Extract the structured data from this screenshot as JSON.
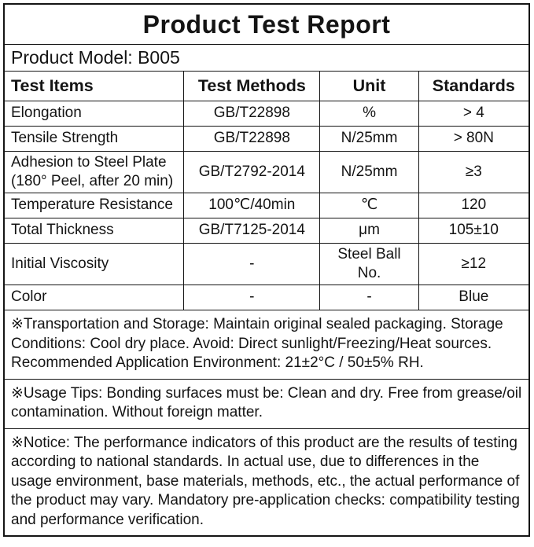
{
  "report": {
    "title": "Product Test Report",
    "model_line": "Product Model: B005",
    "table": {
      "headers": [
        "Test Items",
        "Test Methods",
        "Unit",
        "Standards"
      ],
      "rows": [
        {
          "item": "Elongation",
          "method": "GB/T22898",
          "unit": "%",
          "standard": "> 4"
        },
        {
          "item": "Tensile Strength",
          "method": "GB/T22898",
          "unit": "N/25mm",
          "standard": "> 80N"
        },
        {
          "item": "Adhesion to Steel Plate (180° Peel, after 20 min)",
          "method": "GB/T2792-2014",
          "unit": "N/25mm",
          "standard": "≥3"
        },
        {
          "item": "Temperature Resistance",
          "method": "100℃/40min",
          "unit": "℃",
          "standard": "120"
        },
        {
          "item": "Total Thickness",
          "method": "GB/T7125-2014",
          "unit": "μm",
          "standard": "105±10"
        },
        {
          "item": "Initial Viscosity",
          "method": "-",
          "unit": "Steel Ball No.",
          "standard": "≥12"
        },
        {
          "item": "Color",
          "method": "-",
          "unit": "-",
          "standard": "Blue"
        }
      ]
    },
    "notes": [
      "※Transportation and Storage: Maintain original sealed packaging. Storage Conditions: Cool dry place. Avoid: Direct sunlight/Freezing/Heat sources. Recommended Application Environment: 21±2°C / 50±5% RH.",
      "※Usage Tips: Bonding surfaces must be: Clean and dry. Free from grease/oil contamination. Without foreign matter.",
      "※Notice: The performance indicators of this product are the results of testing according to national standards. In actual use, due to differences in the usage environment, base materials, methods, etc., the actual performance of the product may vary. Mandatory pre-application checks: compatibility testing and performance verification."
    ]
  },
  "colors": {
    "background": "#ffffff",
    "text": "#141414",
    "border": "#141414"
  }
}
